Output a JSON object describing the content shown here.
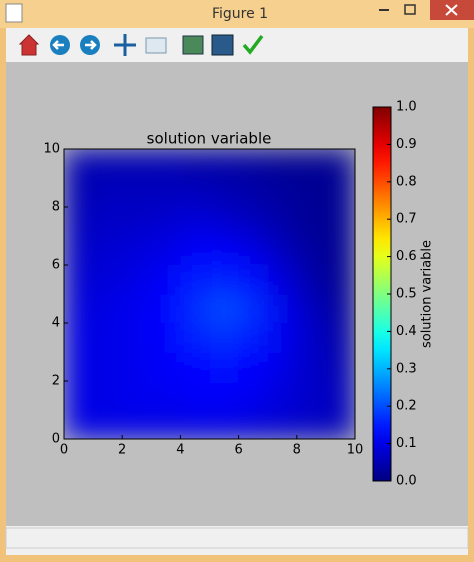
{
  "window": {
    "title": "Figure 1"
  },
  "chart_data": {
    "type": "heatmap",
    "title": "solution variable",
    "colormap": "jet",
    "xlim": [
      0,
      10
    ],
    "ylim": [
      0,
      10
    ],
    "xticks": [
      0,
      2,
      4,
      6,
      8,
      10
    ],
    "yticks": [
      0,
      2,
      4,
      6,
      8,
      10
    ],
    "z": [
      [
        0.1,
        0.1,
        0.1,
        0.1,
        0.1,
        0.1,
        0.09,
        0.08,
        0.07,
        0.06
      ],
      [
        0.1,
        0.1,
        0.11,
        0.11,
        0.12,
        0.12,
        0.11,
        0.09,
        0.07,
        0.06
      ],
      [
        0.1,
        0.1,
        0.11,
        0.12,
        0.13,
        0.14,
        0.13,
        0.1,
        0.07,
        0.05
      ],
      [
        0.1,
        0.1,
        0.11,
        0.13,
        0.16,
        0.17,
        0.15,
        0.11,
        0.07,
        0.04
      ],
      [
        0.09,
        0.1,
        0.11,
        0.13,
        0.17,
        0.2,
        0.17,
        0.11,
        0.06,
        0.03
      ],
      [
        0.08,
        0.09,
        0.1,
        0.12,
        0.15,
        0.16,
        0.14,
        0.09,
        0.04,
        0.02
      ],
      [
        0.07,
        0.08,
        0.09,
        0.1,
        0.12,
        0.12,
        0.1,
        0.06,
        0.03,
        0.02
      ],
      [
        0.06,
        0.07,
        0.07,
        0.08,
        0.09,
        0.08,
        0.06,
        0.04,
        0.02,
        0.02
      ],
      [
        0.05,
        0.06,
        0.06,
        0.06,
        0.06,
        0.05,
        0.04,
        0.03,
        0.02,
        0.02
      ],
      [
        0.05,
        0.05,
        0.05,
        0.05,
        0.04,
        0.04,
        0.03,
        0.02,
        0.02,
        0.02
      ]
    ],
    "colorbar_label": "solution variable",
    "clim": [
      0,
      1
    ],
    "cticks": [
      {
        "value": 0,
        "label": "0.0"
      },
      {
        "value": 0.1,
        "label": "0.1"
      },
      {
        "value": 0.2,
        "label": "0.2"
      },
      {
        "value": 0.3,
        "label": "0.3"
      },
      {
        "value": 0.4,
        "label": "0.4"
      },
      {
        "value": 0.5,
        "label": "0.5"
      },
      {
        "value": 0.6,
        "label": "0.6"
      },
      {
        "value": 0.7,
        "label": "0.7"
      },
      {
        "value": 0.8,
        "label": "0.8"
      },
      {
        "value": 0.9,
        "label": "0.9"
      },
      {
        "value": 1,
        "label": "1.0"
      }
    ]
  }
}
